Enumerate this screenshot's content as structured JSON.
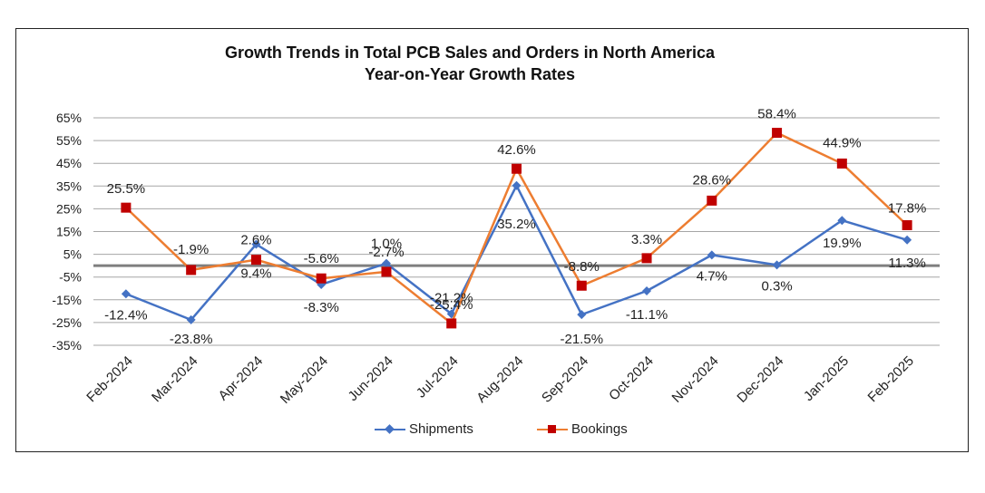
{
  "chart_data": {
    "type": "line",
    "title": "Growth Trends in Total PCB Sales and Orders in North America",
    "subtitle": "Year-on-Year Growth Rates",
    "categories": [
      "Feb-2024",
      "Mar-2024",
      "Apr-2024",
      "May-2024",
      "Jun-2024",
      "Jul-2024",
      "Aug-2024",
      "Sep-2024",
      "Oct-2024",
      "Nov-2024",
      "Dec-2024",
      "Jan-2025",
      "Feb-2025"
    ],
    "yticks": [
      65,
      55,
      45,
      35,
      25,
      15,
      5,
      -5,
      -15,
      -25,
      -35
    ],
    "ylim": [
      -35,
      65
    ],
    "reference_line": 0,
    "series": [
      {
        "name": "Shipments",
        "color": "#4472C4",
        "marker": "diamond",
        "values": [
          -12.4,
          -23.8,
          9.4,
          -8.3,
          1.0,
          -21.2,
          35.2,
          -21.5,
          -11.1,
          4.7,
          0.3,
          19.9,
          11.3
        ],
        "labels": [
          "-12.4%",
          "-23.8%",
          "9.4%",
          "-8.3%",
          "1.0%",
          "-21.2%",
          "35.2%",
          "-21.5%",
          "-11.1%",
          "4.7%",
          "0.3%",
          "19.9%",
          "11.3%"
        ]
      },
      {
        "name": "Bookings",
        "color": "#ED7D31",
        "marker": "square",
        "marker_color": "#C00000",
        "values": [
          25.5,
          -1.9,
          2.6,
          -5.6,
          -2.7,
          -25.4,
          42.6,
          -8.8,
          3.3,
          28.6,
          58.4,
          44.9,
          17.8
        ],
        "labels": [
          "25.5%",
          "-1.9%",
          "2.6%",
          "-5.6%",
          "-2.7%",
          "-25.4%",
          "42.6%",
          "-8.8%",
          "3.3%",
          "28.6%",
          "58.4%",
          "44.9%",
          "17.8%"
        ]
      }
    ],
    "legend_position": "bottom"
  }
}
